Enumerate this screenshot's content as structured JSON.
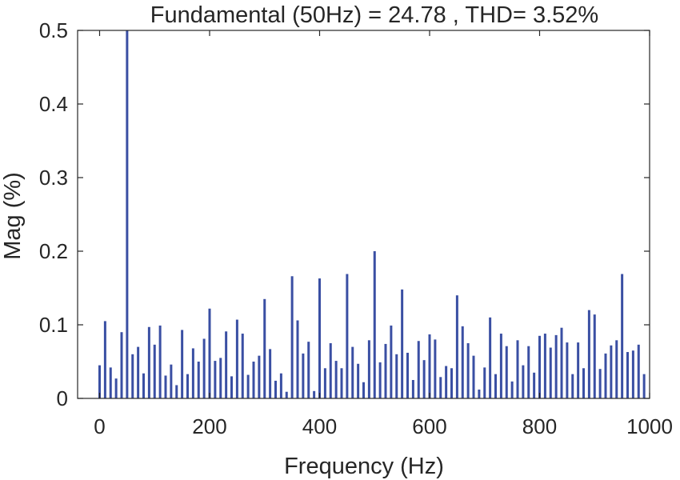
{
  "chart_data": {
    "type": "bar",
    "title": "Fundamental (50Hz) = 24.78 , THD= 3.52%",
    "xlabel": "Frequency (Hz)",
    "ylabel": "Mag (%)",
    "xlim": [
      -40,
      1000
    ],
    "ylim": [
      0,
      0.5
    ],
    "xticks": [
      "0",
      "200",
      "400",
      "600",
      "800",
      "1000"
    ],
    "yticks": [
      "0",
      "0.1",
      "0.2",
      "0.3",
      "0.4",
      "0.5"
    ],
    "grid": false,
    "bar_color": "#3a4fa3",
    "x": [
      0,
      10,
      20,
      30,
      40,
      50,
      60,
      70,
      80,
      90,
      100,
      110,
      120,
      130,
      140,
      150,
      160,
      170,
      180,
      190,
      200,
      210,
      220,
      230,
      240,
      250,
      260,
      270,
      280,
      290,
      300,
      310,
      320,
      330,
      340,
      350,
      360,
      370,
      380,
      390,
      400,
      410,
      420,
      430,
      440,
      450,
      460,
      470,
      480,
      490,
      500,
      510,
      520,
      530,
      540,
      550,
      560,
      570,
      580,
      590,
      600,
      610,
      620,
      630,
      640,
      650,
      660,
      670,
      680,
      690,
      700,
      710,
      720,
      730,
      740,
      750,
      760,
      770,
      780,
      790,
      800,
      810,
      820,
      830,
      840,
      850,
      860,
      870,
      880,
      890,
      900,
      910,
      920,
      930,
      940,
      950,
      960,
      970,
      980,
      990
    ],
    "values": [
      0.045,
      0.105,
      0.042,
      0.027,
      0.09,
      0.5,
      0.06,
      0.07,
      0.034,
      0.097,
      0.073,
      0.099,
      0.031,
      0.046,
      0.018,
      0.093,
      0.033,
      0.068,
      0.05,
      0.081,
      0.122,
      0.051,
      0.055,
      0.091,
      0.03,
      0.107,
      0.088,
      0.032,
      0.05,
      0.058,
      0.135,
      0.067,
      0.024,
      0.034,
      0.009,
      0.166,
      0.106,
      0.061,
      0.077,
      0.01,
      0.163,
      0.041,
      0.075,
      0.051,
      0.041,
      0.169,
      0.07,
      0.047,
      0.022,
      0.079,
      0.2,
      0.049,
      0.074,
      0.099,
      0.06,
      0.148,
      0.062,
      0.025,
      0.078,
      0.052,
      0.087,
      0.08,
      0.029,
      0.044,
      0.041,
      0.14,
      0.098,
      0.075,
      0.058,
      0.012,
      0.042,
      0.11,
      0.033,
      0.088,
      0.071,
      0.023,
      0.079,
      0.045,
      0.071,
      0.035,
      0.085,
      0.088,
      0.069,
      0.086,
      0.096,
      0.076,
      0.033,
      0.076,
      0.041,
      0.12,
      0.114,
      0.04,
      0.061,
      0.072,
      0.079,
      0.169,
      0.063,
      0.065,
      0.073,
      0.033
    ]
  }
}
